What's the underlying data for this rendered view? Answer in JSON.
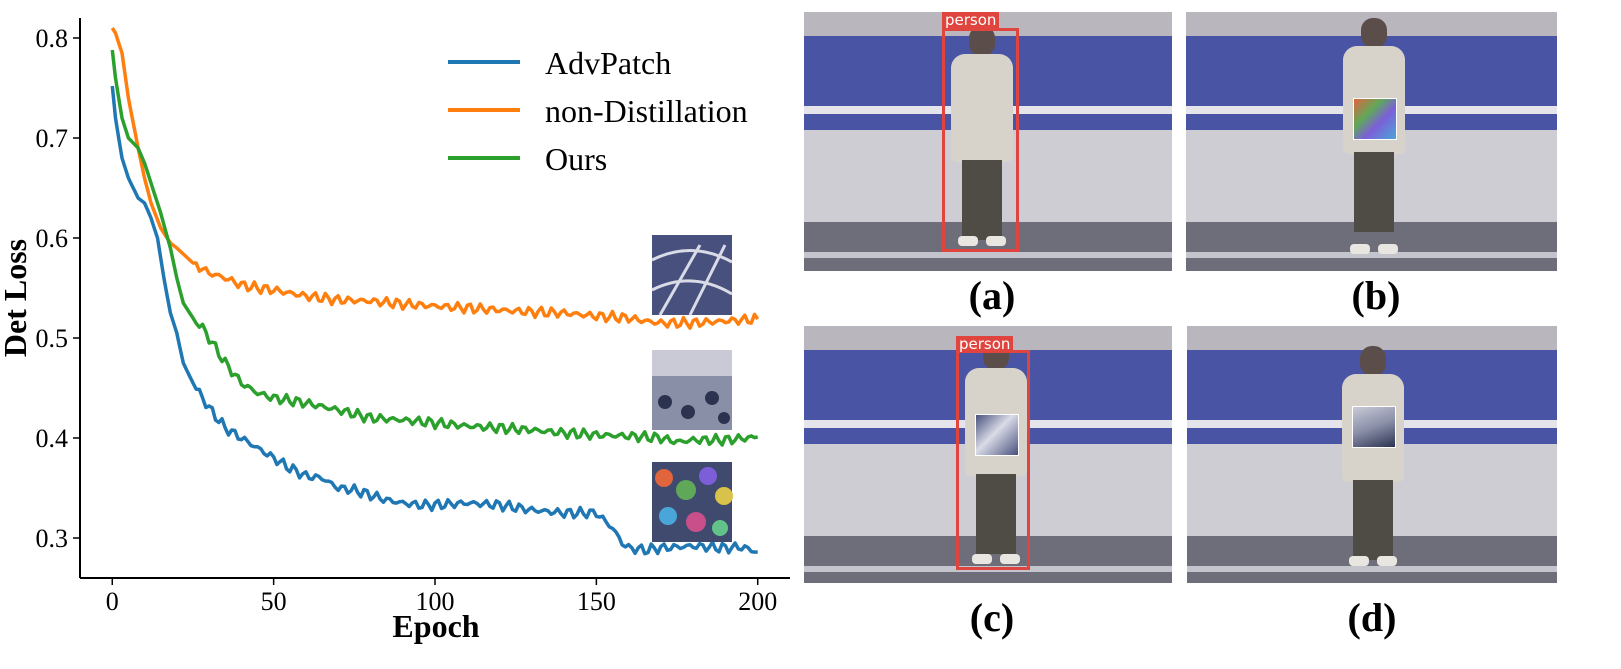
{
  "chart_data": {
    "type": "line",
    "title": "",
    "xlabel": "Epoch",
    "ylabel": "Det Loss",
    "xlim": [
      -10,
      210
    ],
    "ylim": [
      0.26,
      0.82
    ],
    "xticks": [
      0,
      50,
      100,
      150,
      200
    ],
    "yticks": [
      0.3,
      0.4,
      0.5,
      0.6,
      0.7,
      0.8
    ],
    "xtick_labels": [
      "0",
      "50",
      "100",
      "150",
      "200"
    ],
    "ytick_labels": [
      "0.3",
      "0.4",
      "0.5",
      "0.6",
      "0.7",
      "0.8"
    ],
    "legend_position": "top-right",
    "grid": false,
    "series": [
      {
        "name": "AdvPatch",
        "color": "#1f77b4",
        "x": [
          0,
          1,
          3,
          5,
          8,
          10,
          12,
          14,
          16,
          18,
          20,
          22,
          25,
          28,
          30,
          35,
          40,
          45,
          50,
          55,
          60,
          65,
          70,
          75,
          80,
          85,
          90,
          95,
          100,
          110,
          120,
          130,
          140,
          150,
          155,
          158,
          160,
          165,
          170,
          180,
          190,
          195,
          200
        ],
        "y": [
          0.752,
          0.72,
          0.68,
          0.66,
          0.64,
          0.635,
          0.62,
          0.6,
          0.56,
          0.525,
          0.505,
          0.475,
          0.455,
          0.44,
          0.43,
          0.41,
          0.4,
          0.39,
          0.38,
          0.37,
          0.362,
          0.36,
          0.35,
          0.348,
          0.343,
          0.338,
          0.335,
          0.333,
          0.333,
          0.335,
          0.333,
          0.328,
          0.325,
          0.325,
          0.31,
          0.295,
          0.29,
          0.288,
          0.29,
          0.292,
          0.29,
          0.291,
          0.286
        ]
      },
      {
        "name": "non-Distillation",
        "color": "#ff7f0e",
        "x": [
          0,
          1,
          2,
          3,
          5,
          8,
          10,
          12,
          15,
          18,
          20,
          25,
          30,
          35,
          40,
          45,
          50,
          60,
          70,
          80,
          90,
          100,
          110,
          120,
          130,
          140,
          150,
          160,
          165,
          170,
          180,
          190,
          200
        ],
        "y": [
          0.81,
          0.805,
          0.795,
          0.785,
          0.74,
          0.69,
          0.66,
          0.635,
          0.61,
          0.595,
          0.59,
          0.575,
          0.565,
          0.56,
          0.553,
          0.55,
          0.548,
          0.542,
          0.538,
          0.537,
          0.534,
          0.532,
          0.53,
          0.528,
          0.526,
          0.525,
          0.522,
          0.52,
          0.517,
          0.515,
          0.515,
          0.517,
          0.519
        ]
      },
      {
        "name": "Ours",
        "color": "#2ca02c",
        "x": [
          0,
          1,
          2,
          3,
          5,
          8,
          10,
          12,
          15,
          18,
          20,
          22,
          25,
          28,
          30,
          35,
          40,
          45,
          50,
          60,
          70,
          80,
          90,
          100,
          110,
          120,
          130,
          140,
          150,
          160,
          170,
          175,
          180,
          190,
          200
        ],
        "y": [
          0.788,
          0.76,
          0.74,
          0.72,
          0.7,
          0.69,
          0.675,
          0.655,
          0.625,
          0.59,
          0.56,
          0.535,
          0.52,
          0.51,
          0.5,
          0.475,
          0.455,
          0.445,
          0.44,
          0.435,
          0.428,
          0.42,
          0.418,
          0.415,
          0.412,
          0.41,
          0.408,
          0.405,
          0.403,
          0.402,
          0.4,
          0.396,
          0.398,
          0.398,
          0.401
        ]
      }
    ]
  },
  "photos": {
    "detections": [
      {
        "label": "person"
      },
      {
        "label": "person"
      }
    ],
    "captions": [
      "(a)",
      "(b)",
      "(c)",
      "(d)"
    ]
  }
}
